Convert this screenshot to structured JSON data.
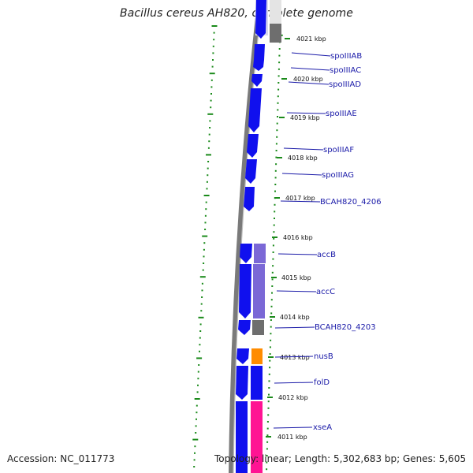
{
  "title": "Bacillus cereus AH820, complete genome",
  "accession": "Accession: NC_011773",
  "topology": "Topology: linear; Length: 5,302,683 bp; Genes: 5,605",
  "kbp_ticks": [
    "4021 kbp",
    "4020 kbp",
    "4019 kbp",
    "4018 kbp",
    "4017 kbp",
    "4016 kbp",
    "4015 kbp",
    "4014 kbp",
    "4013 kbp",
    "4012 kbp",
    "4011 kbp"
  ],
  "genes": [
    "spoIIIAB",
    "spoIIIAC",
    "spoIIIAD",
    "spoIIIAE",
    "spoIIIAF",
    "spoIIIAG",
    "BCAH820_4206",
    "accB",
    "accC",
    "BCAH820_4203",
    "nusB",
    "folD",
    "xseA"
  ],
  "colors": {
    "forward_gene": "#0a0af0",
    "accB_accC_cog": "#7b68d6",
    "grey_cog": "#6e6e6e",
    "nusB_cog": "#ff8c00",
    "xseA_cog": "#ff1493",
    "gc_skew": "#1a8a1a",
    "backbone": "#7a7a7a",
    "label_text": "#1a1aa8"
  }
}
